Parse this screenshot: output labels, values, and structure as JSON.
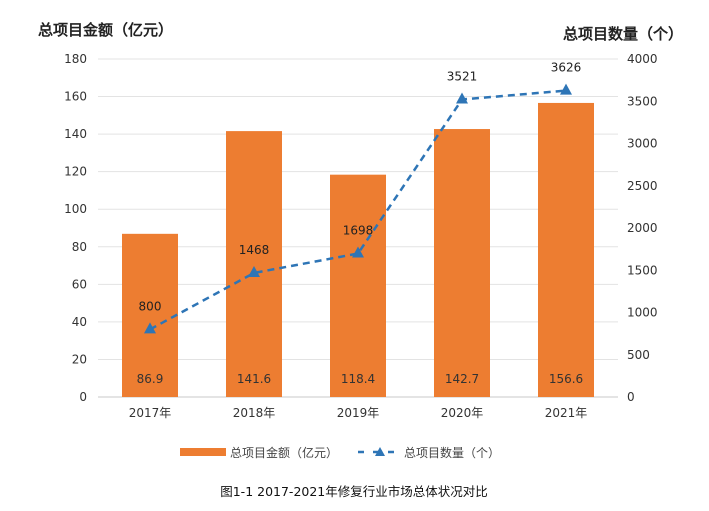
{
  "chart_data": {
    "type": "bar+line",
    "categories": [
      "2017年",
      "2018年",
      "2019年",
      "2020年",
      "2021年"
    ],
    "series": [
      {
        "name": "总项目金额（亿元）",
        "type": "bar",
        "axis": "left",
        "values": [
          86.9,
          141.6,
          118.4,
          142.7,
          156.6
        ],
        "labels": [
          "86.9",
          "141.6",
          "118.4",
          "142.7",
          "156.6"
        ],
        "color": "#ED7D31"
      },
      {
        "name": "总项目数量（个）",
        "type": "line",
        "axis": "right",
        "style": "dashed",
        "marker": "triangle",
        "values": [
          800,
          1468,
          1698,
          3521,
          3626
        ],
        "labels": [
          "800",
          "1468",
          "1698",
          "3521",
          "3626"
        ],
        "color": "#2E75B6"
      }
    ],
    "ylabel_left": "总项目金额（亿元）",
    "ylabel_right": "总项目数量（个）",
    "ylim_left": [
      0,
      180
    ],
    "ylim_right": [
      0,
      4000
    ],
    "yticks_left": [
      "0",
      "20",
      "40",
      "60",
      "80",
      "100",
      "120",
      "140",
      "160",
      "180"
    ],
    "yticks_right": [
      "0",
      "500",
      "1000",
      "1500",
      "2000",
      "2500",
      "3000",
      "3500",
      "4000"
    ],
    "grid": true,
    "legend_position": "bottom",
    "caption": "图1-1  2017-2021年修复行业市场总体状况对比"
  }
}
